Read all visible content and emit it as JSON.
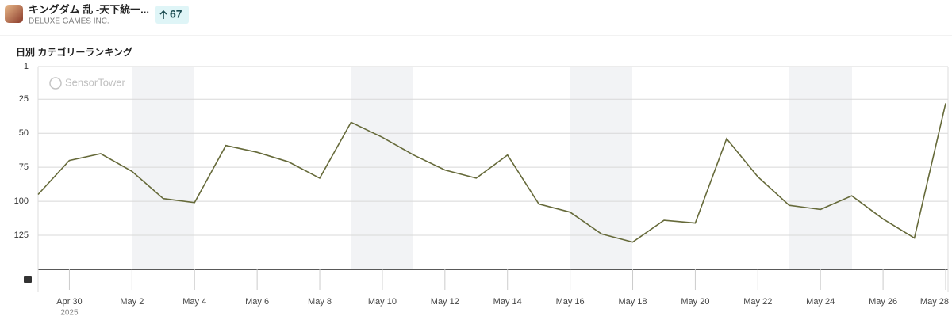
{
  "header": {
    "app_name": "キングダム 乱 -天下統一...",
    "publisher": "DELUXE GAMES INC.",
    "rank_change": "67"
  },
  "chart_data": {
    "type": "line",
    "title": "日別 カテゴリーランキング",
    "watermark": "SensorTower",
    "categories": [
      null,
      "Apr 30",
      null,
      "May 2",
      null,
      "May 4",
      null,
      "May 6",
      null,
      "May 8",
      null,
      "May 10",
      null,
      "May 12",
      null,
      "May 14",
      null,
      "May 16",
      null,
      "May 18",
      null,
      "May 20",
      null,
      "May 22",
      null,
      "May 24",
      null,
      "May 26",
      null,
      "May 28"
    ],
    "year_label": "2025",
    "series": [
      {
        "name": "日別 カテゴリーランキング",
        "color": "#666a3a",
        "values": [
          95,
          70,
          65,
          78,
          98,
          101,
          59,
          64,
          71,
          83,
          42,
          53,
          66,
          77,
          83,
          66,
          102,
          108,
          124,
          130,
          114,
          116,
          54,
          82,
          103,
          106,
          96,
          113,
          127,
          28
        ]
      }
    ],
    "ylim": [
      1,
      150
    ],
    "yticks": [
      1,
      25,
      50,
      75,
      100,
      125
    ],
    "y_inverted": true,
    "grid": true
  }
}
